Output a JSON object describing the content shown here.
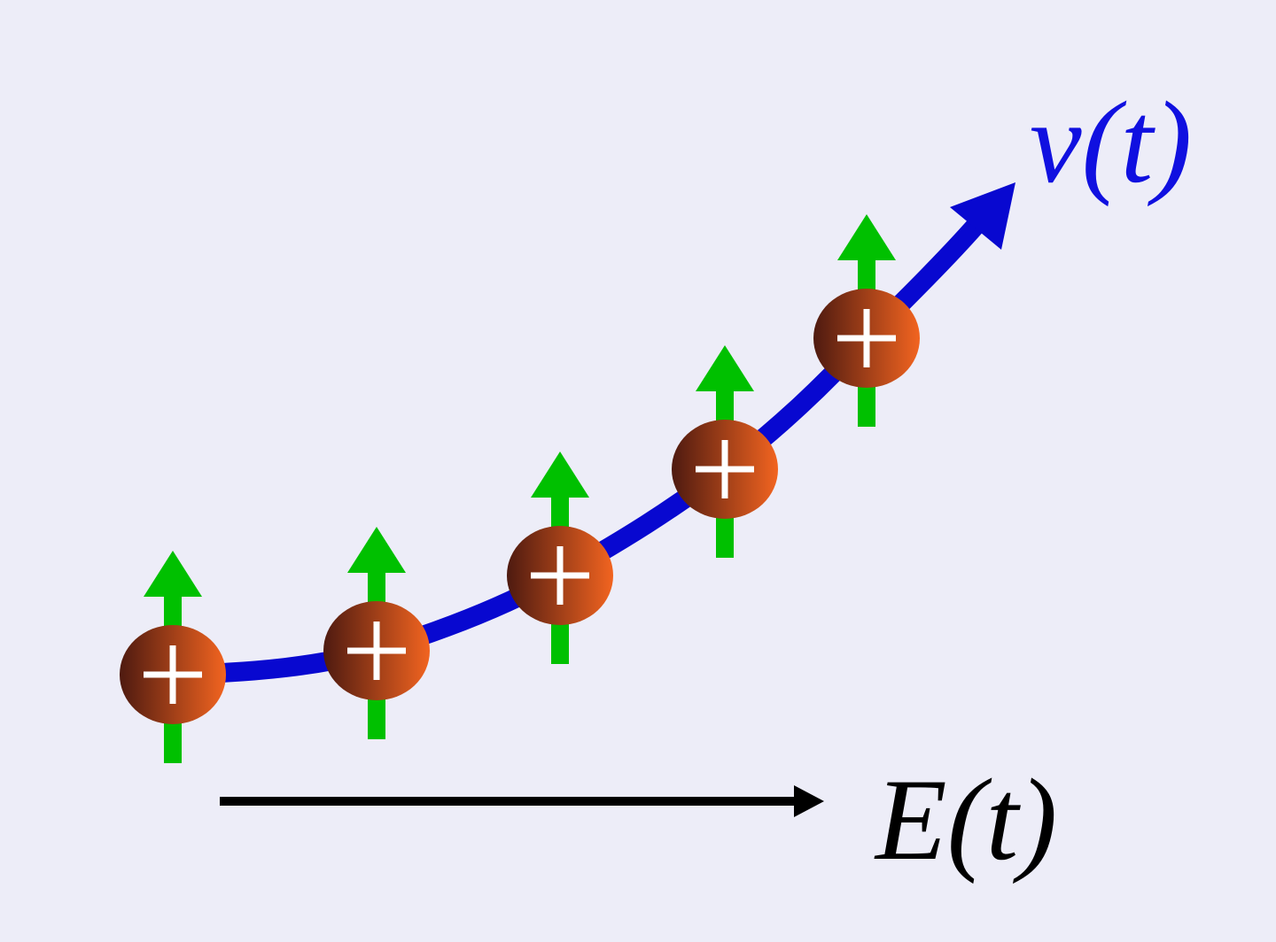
{
  "labels": {
    "velocity": "v(t)",
    "field": "E(t)"
  }
}
